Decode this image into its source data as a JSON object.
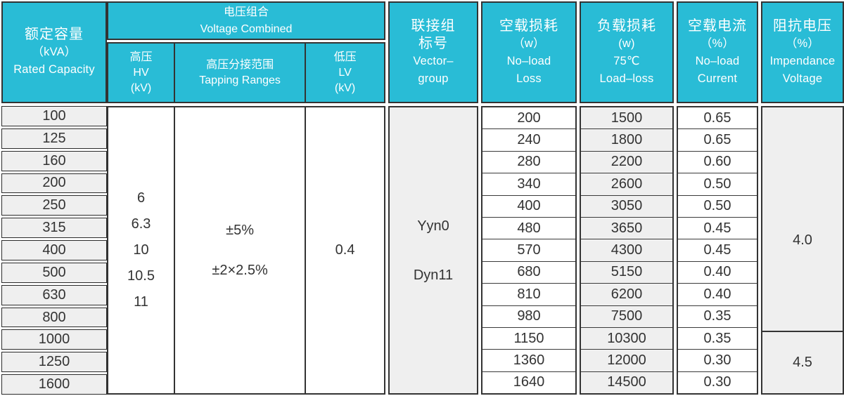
{
  "colors": {
    "header_bg": "#29bcd6",
    "border_dark": "#333333",
    "cell_gray": "#efefef",
    "text_dark": "#333333",
    "header_text": "#ffffff"
  },
  "header": {
    "rated_capacity": {
      "zh": "额定容量",
      "unit": "（kVA）",
      "en": "Rated Capacity"
    },
    "voltage_combined": {
      "zh": "电压组合",
      "en": "Voltage Combined"
    },
    "hv": {
      "zh": "高压",
      "en": "HV",
      "unit": "(kV)"
    },
    "tapping": {
      "zh": "高压分接范围",
      "en": "Tapping Ranges"
    },
    "lv": {
      "zh": "低压",
      "en": "LV",
      "unit": "(kV)"
    },
    "vector_group": {
      "zh1": "联接组",
      "zh2": "标号",
      "en1": "Vector–",
      "en2": "group"
    },
    "no_load_loss": {
      "zh": "空载损耗",
      "unit": "（w）",
      "en1": "No–load",
      "en2": "Loss"
    },
    "load_loss": {
      "zh": "负载损耗",
      "unit": "(w)",
      "temp": "75℃",
      "en": "Load–loss"
    },
    "no_load_current": {
      "zh": "空载电流",
      "unit": "（%）",
      "en1": "No–load",
      "en2": "Current"
    },
    "impedance": {
      "zh": "阻抗电压",
      "unit": "（%）",
      "en1": "Impendance",
      "en2": "Voltage"
    }
  },
  "body": {
    "capacities": [
      "100",
      "125",
      "160",
      "200",
      "250",
      "315",
      "400",
      "500",
      "630",
      "800",
      "1000",
      "1250",
      "1600"
    ],
    "hv_values": [
      "6",
      "6.3",
      "10",
      "10.5",
      "11"
    ],
    "tapping_values": {
      "line1": "±5%",
      "line2": "±2×2.5%"
    },
    "lv_value": "0.4",
    "vector_values": {
      "line1": "Yyn0",
      "line2": "Dyn11"
    },
    "no_load_loss": [
      "200",
      "240",
      "280",
      "340",
      "400",
      "480",
      "570",
      "680",
      "810",
      "980",
      "1150",
      "1360",
      "1640"
    ],
    "load_loss": [
      "1500",
      "1800",
      "2200",
      "2600",
      "3050",
      "3650",
      "4300",
      "5150",
      "6200",
      "7500",
      "10300",
      "12000",
      "14500"
    ],
    "no_load_current": [
      "0.65",
      "0.65",
      "0.60",
      "0.50",
      "0.50",
      "0.45",
      "0.45",
      "0.40",
      "0.40",
      "0.35",
      "0.35",
      "0.30",
      "0.30"
    ],
    "impedance": {
      "group1": "4.0",
      "group2": "4.5"
    }
  }
}
